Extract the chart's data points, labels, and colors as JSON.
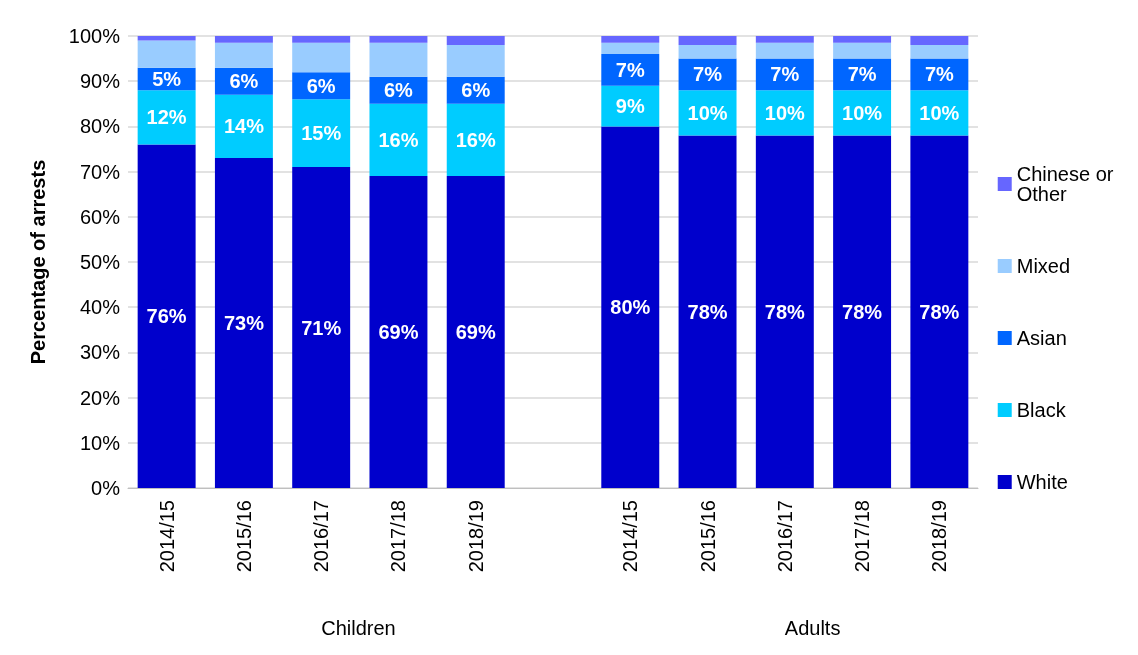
{
  "chart_data": {
    "type": "bar",
    "stacked": true,
    "ylabel": "Percentage of arrests",
    "categories": [
      "2014/15",
      "2015/16",
      "2016/17",
      "2017/18",
      "2018/19",
      null,
      "2014/15",
      "2015/16",
      "2016/17",
      "2017/18",
      "2018/19"
    ],
    "series": [
      {
        "name": "White",
        "color": "#0000cc",
        "values": [
          76,
          73,
          71,
          69,
          69,
          null,
          80,
          78,
          78,
          78,
          78
        ],
        "value_labels": [
          "76%",
          "73%",
          "71%",
          "69%",
          "69%",
          null,
          "80%",
          "78%",
          "78%",
          "78%",
          "78%"
        ]
      },
      {
        "name": "Black",
        "color": "#00ccff",
        "values": [
          12,
          14,
          15,
          16,
          16,
          null,
          9,
          10,
          10,
          10,
          10
        ],
        "value_labels": [
          "12%",
          "14%",
          "15%",
          "16%",
          "16%",
          null,
          "9%",
          "10%",
          "10%",
          "10%",
          "10%"
        ]
      },
      {
        "name": "Asian",
        "color": "#0066ff",
        "values": [
          5,
          6,
          6,
          6,
          6,
          null,
          7,
          7,
          7,
          7,
          7
        ],
        "value_labels": [
          "5%",
          "6%",
          "6%",
          "6%",
          "6%",
          null,
          "7%",
          "7%",
          "7%",
          "7%",
          "7%"
        ]
      },
      {
        "name": "Mixed",
        "color": "#99ccff",
        "values": [
          6,
          5.5,
          6.5,
          7.5,
          7,
          null,
          2.5,
          3,
          3.5,
          3.5,
          3
        ]
      },
      {
        "name": "Chinese or Other",
        "color": "#6666ff",
        "values": [
          1,
          1.5,
          1.5,
          1.5,
          2,
          null,
          1.5,
          2,
          1.5,
          1.5,
          2
        ]
      }
    ],
    "ylim": [
      0,
      100
    ],
    "yticks": [
      {
        "value": 0,
        "label": "0%"
      },
      {
        "value": 10,
        "label": "10%"
      },
      {
        "value": 20,
        "label": "20%"
      },
      {
        "value": 30,
        "label": "30%"
      },
      {
        "value": 40,
        "label": "40%"
      },
      {
        "value": 50,
        "label": "50%"
      },
      {
        "value": 60,
        "label": "60%"
      },
      {
        "value": 70,
        "label": "70%"
      },
      {
        "value": 80,
        "label": "80%"
      },
      {
        "value": 90,
        "label": "90%"
      },
      {
        "value": 100,
        "label": "100%"
      }
    ],
    "annotations": [
      "Children",
      "Adults"
    ],
    "grid": "y",
    "legend": "right"
  }
}
